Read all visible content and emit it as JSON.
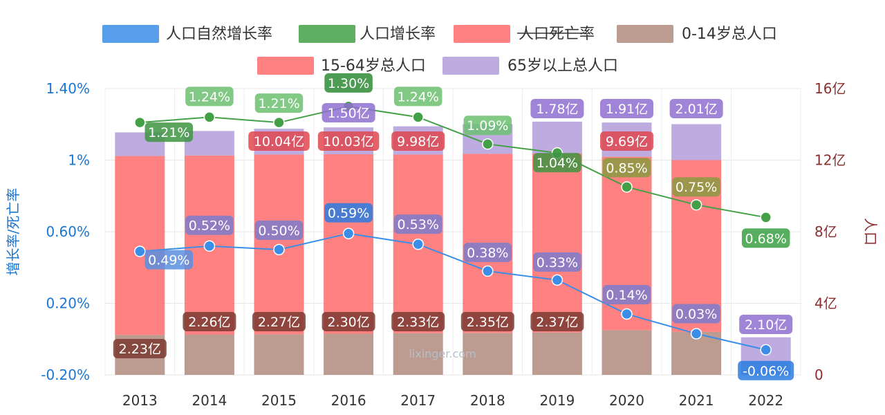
{
  "chart_data": {
    "type": "bar",
    "categories": [
      "2013",
      "2014",
      "2015",
      "2016",
      "2017",
      "2018",
      "2019",
      "2020",
      "2021",
      "2022"
    ],
    "left_axis": {
      "title": "增长率/死亡率",
      "ylim": [
        -0.2,
        1.4
      ],
      "ticks": [
        -0.2,
        0.2,
        0.6,
        1.0,
        1.4
      ],
      "tick_labels": [
        "-0.20%",
        "0.20%",
        "0.60%",
        "1%",
        "1.40%"
      ]
    },
    "right_axis": {
      "title": "人口",
      "ylim": [
        0,
        16
      ],
      "ticks": [
        0,
        4,
        8,
        12,
        16
      ],
      "tick_labels": [
        "0",
        "4亿",
        "8亿",
        "12亿",
        "16亿"
      ]
    },
    "legend": [
      {
        "name": "人口自然增长率",
        "color": "#3b8ee8",
        "hidden": false
      },
      {
        "name": "人口增长率",
        "color": "#43a047",
        "hidden": false
      },
      {
        "name": "人口死亡率",
        "color": "#ff6b6b",
        "hidden": true
      },
      {
        "name": "0-14岁总人口",
        "color": "#b08a7e",
        "hidden": false
      },
      {
        "name": "15-64岁总人口",
        "color": "#ff6b6b",
        "hidden": false
      },
      {
        "name": "65岁以上总人口",
        "color": "#b39ddb",
        "hidden": false
      }
    ],
    "stacked_bars": [
      {
        "name": "0-14岁总人口",
        "color": "#b08a7e",
        "values": [
          2.23,
          2.26,
          2.27,
          2.3,
          2.33,
          2.35,
          2.37,
          2.5,
          2.4,
          0
        ],
        "labels": [
          "2.23亿",
          "2.26亿",
          "2.27亿",
          "2.30亿",
          "2.33亿",
          "2.35亿",
          "2.37亿",
          "",
          "",
          ""
        ]
      },
      {
        "name": "15-64岁总人口",
        "color": "#ff6b6b",
        "values": [
          10.0,
          10.0,
          10.04,
          10.03,
          9.98,
          10.0,
          10.0,
          9.69,
          9.6,
          0
        ],
        "labels": [
          "",
          "",
          "10.04亿",
          "10.03亿",
          "9.98亿",
          "",
          "",
          "9.69亿",
          "",
          ""
        ]
      },
      {
        "name": "65岁以上总人口",
        "color": "#b39ddb",
        "values": [
          1.32,
          1.37,
          1.44,
          1.5,
          1.58,
          1.66,
          1.78,
          1.91,
          2.01,
          2.1
        ],
        "labels": [
          "",
          "",
          "",
          "1.50亿",
          "",
          "",
          "1.78亿",
          "1.91亿",
          "2.01亿",
          "2.10亿"
        ]
      }
    ],
    "line_series": [
      {
        "name": "人口增长率",
        "color": "#43a047",
        "values": [
          1.21,
          1.24,
          1.21,
          1.3,
          1.24,
          1.09,
          1.04,
          0.85,
          0.75,
          0.68
        ],
        "labels": [
          "1.21%",
          "1.24%",
          "1.21%",
          "1.30%",
          "1.24%",
          "1.09%",
          "1.04%",
          "0.85%",
          "0.75%",
          "0.68%"
        ]
      },
      {
        "name": "人口自然增长率",
        "color": "#3b8ee8",
        "values": [
          0.49,
          0.52,
          0.5,
          0.59,
          0.53,
          0.38,
          0.33,
          0.14,
          0.03,
          -0.06
        ],
        "labels": [
          "0.49%",
          "0.52%",
          "0.50%",
          "0.59%",
          "0.53%",
          "0.38%",
          "0.33%",
          "0.14%",
          "0.03%",
          "-0.06%"
        ]
      }
    ],
    "watermark": "lixinger.com",
    "grid": true
  }
}
